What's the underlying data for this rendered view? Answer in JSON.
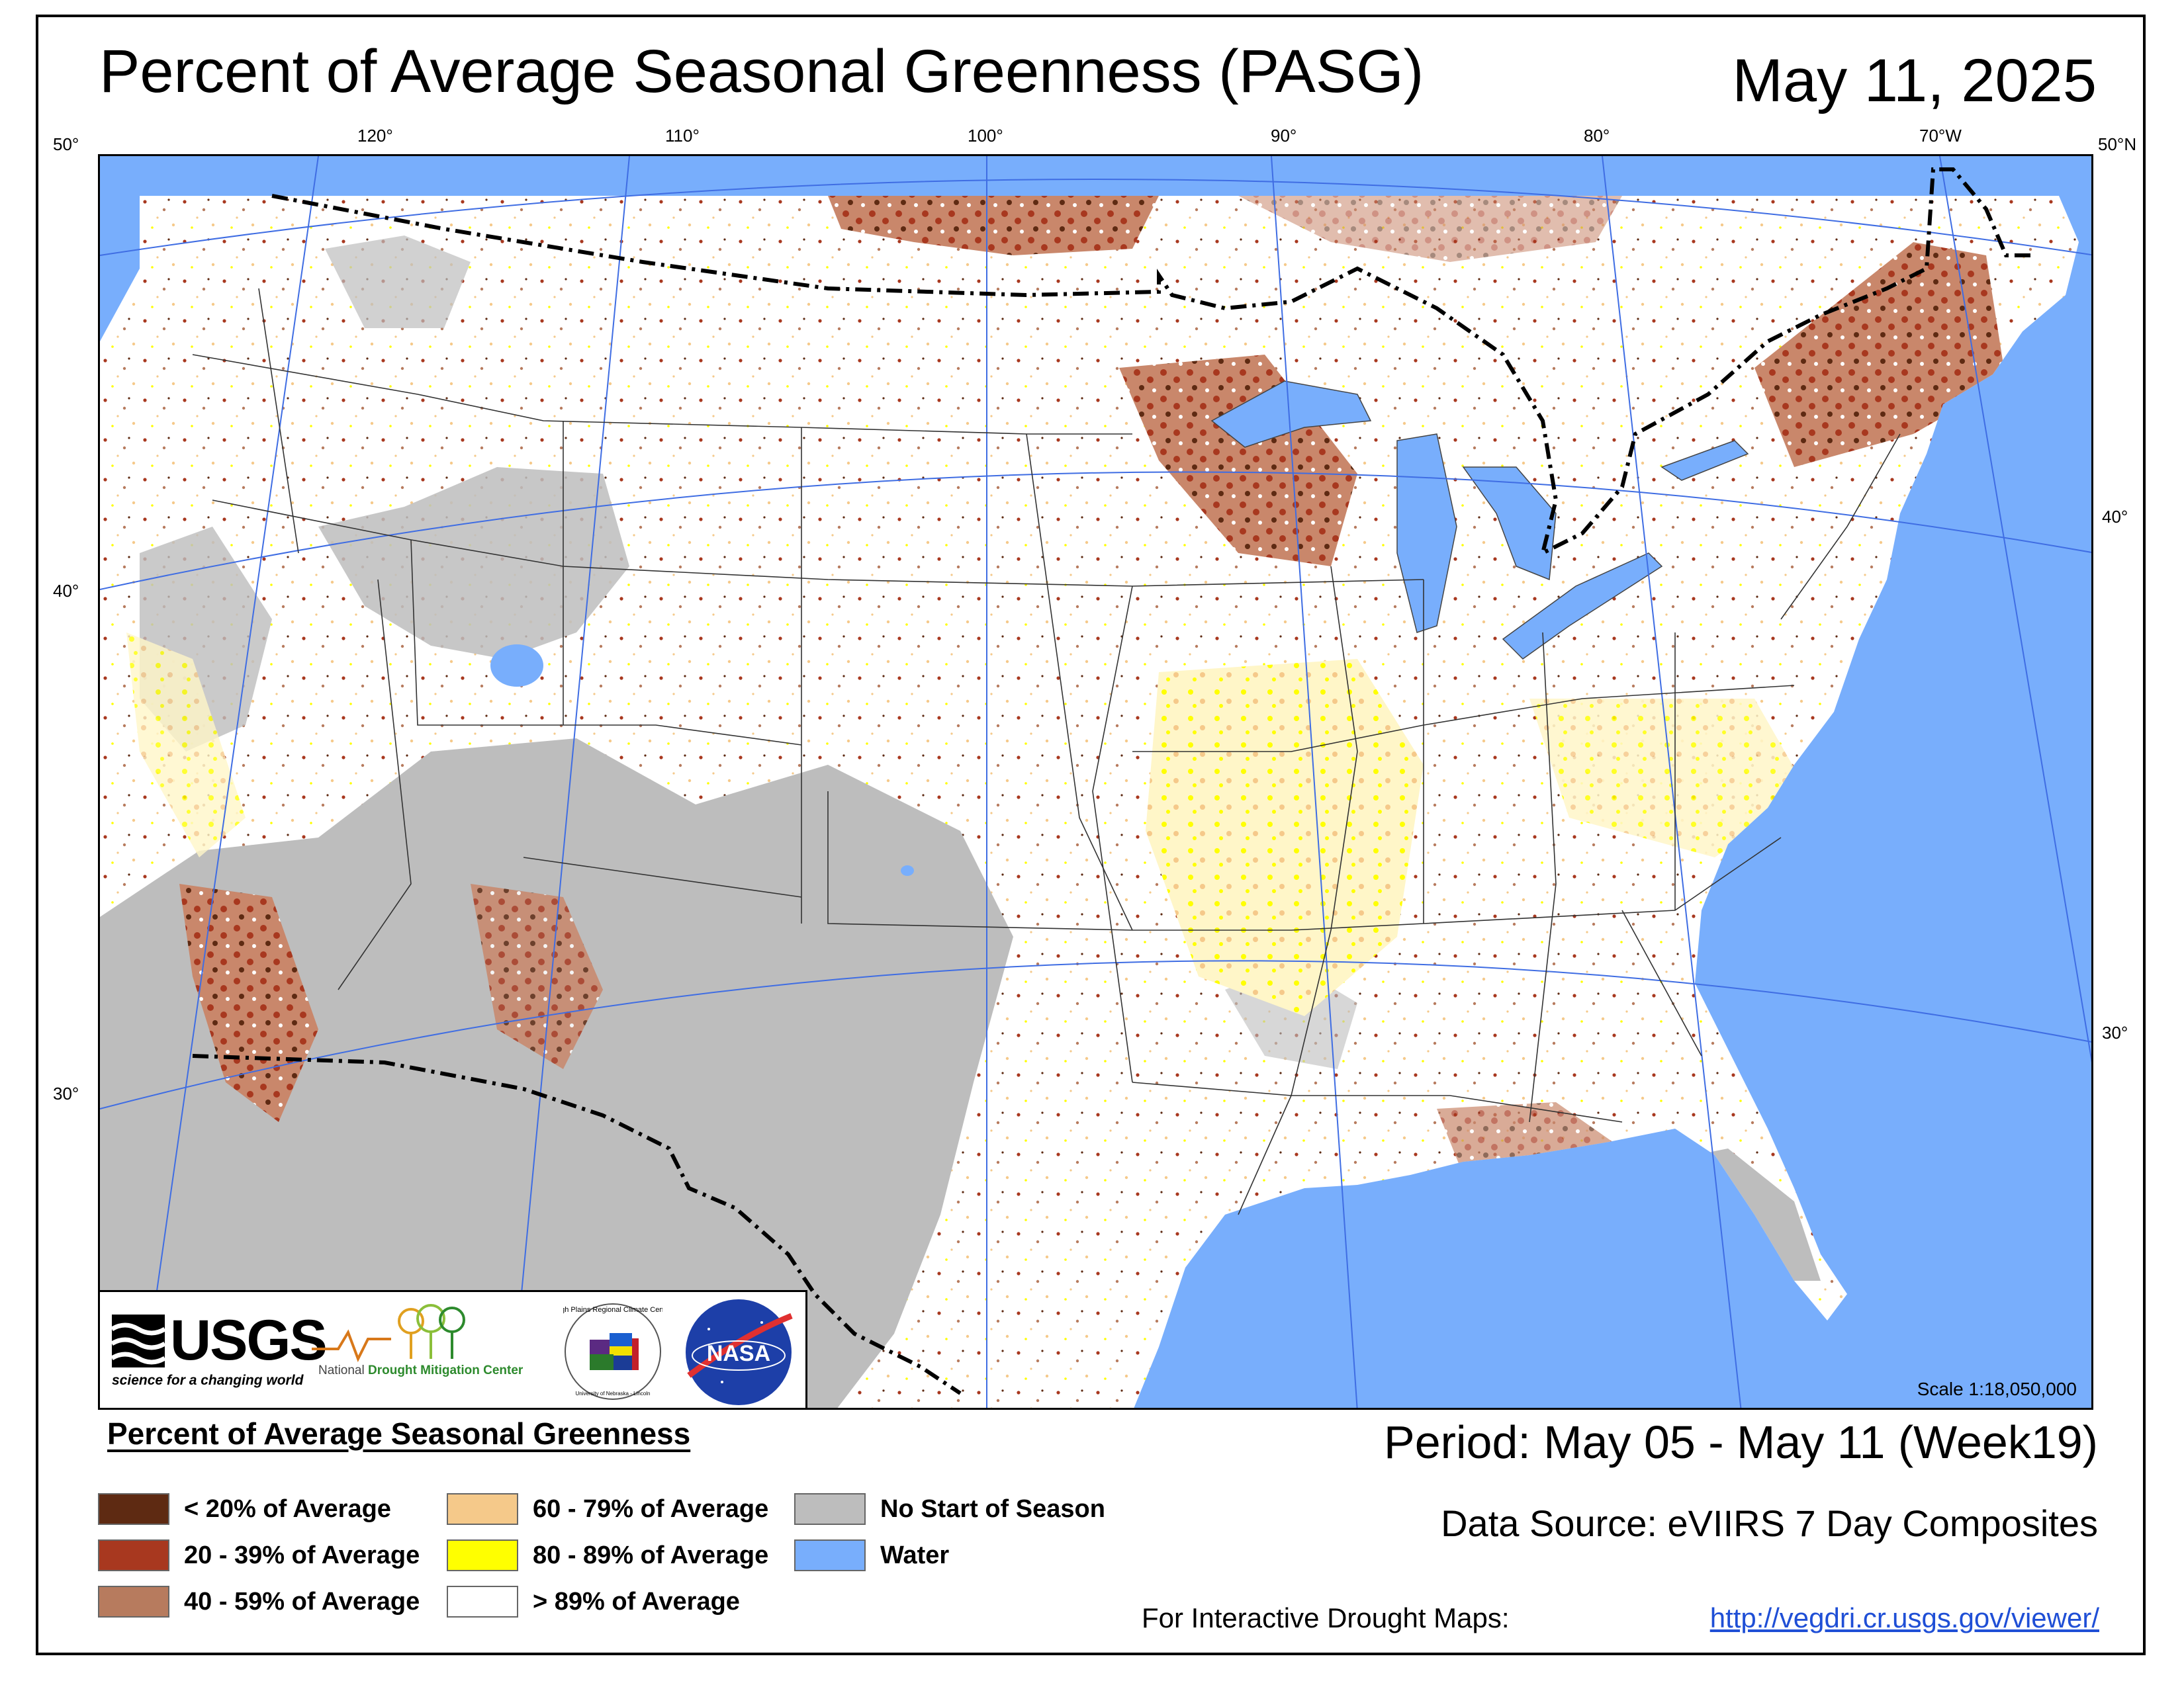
{
  "header": {
    "title": "Percent of Average Seasonal Greenness (PASG)",
    "date": "May 11, 2025"
  },
  "map": {
    "lon_labels": [
      "120°",
      "110°",
      "100°",
      "90°",
      "80°",
      "70°W"
    ],
    "lat_labels_left": [
      "50°",
      "40°",
      "30°"
    ],
    "lat_labels_right": [
      "50°N",
      "40°",
      "30°"
    ],
    "scale": "Scale 1:18,050,000",
    "colors": {
      "water": "#78aefc",
      "land_above_89": "#ffffff",
      "no_start": "#bdbdbd",
      "lt20": "#5e2a12",
      "p20_39": "#a8381f",
      "p40_59": "#b77b5e",
      "p60_79": "#f5c98a",
      "p80_89": "#ffff00"
    }
  },
  "logos": {
    "usgs_word": "USGS",
    "usgs_tagline": "science for a changing world",
    "ndmc_prefix": "National",
    "ndmc_name": "Drought Mitigation Center",
    "hprcc": "High Plains Regional Climate Center",
    "hprcc_sub": "University of Nebraska - Lincoln",
    "nasa": "NASA"
  },
  "legend": {
    "title": "Percent of Average Seasonal Greenness",
    "items": [
      {
        "label": "< 20% of Average",
        "color": "#5e2a12"
      },
      {
        "label": "20 - 39% of Average",
        "color": "#a8381f"
      },
      {
        "label": "40 - 59% of Average",
        "color": "#b77b5e"
      },
      {
        "label": "60 - 79% of Average",
        "color": "#f5c98a"
      },
      {
        "label": "80 - 89% of Average",
        "color": "#ffff00"
      },
      {
        "label": "> 89% of Average",
        "color": "#ffffff"
      },
      {
        "label": "No Start of Season",
        "color": "#bdbdbd"
      },
      {
        "label": "Water",
        "color": "#78aefc"
      }
    ]
  },
  "footer": {
    "period": "Period:  May 05 - May 11 (Week19)",
    "source": "Data Source:  eVIIRS 7 Day Composites",
    "interactive": "For Interactive Drought Maps:",
    "link": "http://vegdri.cr.usgs.gov/viewer/"
  }
}
